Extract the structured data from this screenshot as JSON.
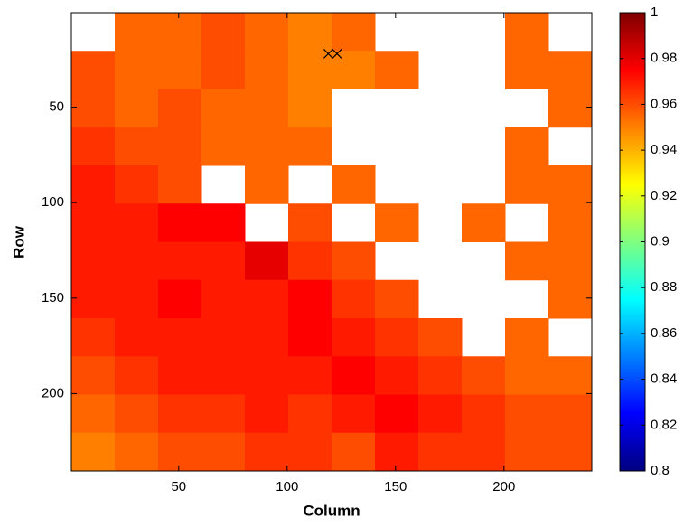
{
  "chart_data": {
    "type": "heatmap",
    "x_label": "Column",
    "y_label": "Row",
    "x": [
      10.5,
      30.5,
      50.5,
      70.5,
      90.5,
      110.5,
      130.5,
      150.5,
      170.5,
      190.5,
      210.5,
      230.5
    ],
    "y": [
      10.5,
      30.5,
      50.5,
      70.5,
      90.5,
      110.5,
      130.5,
      150.5,
      170.5,
      190.5,
      210.5,
      230.5
    ],
    "cell_size": 20,
    "z": [
      [
        null,
        0.955,
        0.955,
        0.96,
        0.955,
        0.95,
        0.955,
        null,
        null,
        null,
        0.955,
        null
      ],
      [
        0.96,
        0.955,
        0.955,
        0.96,
        0.955,
        0.95,
        0.95,
        0.955,
        null,
        null,
        0.955,
        0.955
      ],
      [
        0.96,
        0.955,
        0.96,
        0.955,
        0.955,
        0.95,
        null,
        null,
        null,
        null,
        null,
        0.955
      ],
      [
        0.965,
        0.96,
        0.96,
        0.955,
        0.955,
        0.955,
        null,
        null,
        null,
        null,
        0.955,
        null
      ],
      [
        0.97,
        0.965,
        0.96,
        null,
        0.955,
        null,
        0.955,
        null,
        null,
        null,
        0.955,
        0.955
      ],
      [
        0.97,
        0.97,
        0.975,
        0.975,
        null,
        0.96,
        null,
        0.955,
        null,
        0.955,
        null,
        0.955
      ],
      [
        0.97,
        0.97,
        0.97,
        0.97,
        0.98,
        0.965,
        0.96,
        null,
        null,
        null,
        0.955,
        0.955
      ],
      [
        0.97,
        0.97,
        0.975,
        0.97,
        0.97,
        0.975,
        0.965,
        0.96,
        null,
        null,
        null,
        0.955
      ],
      [
        0.965,
        0.97,
        0.97,
        0.97,
        0.97,
        0.975,
        0.97,
        0.965,
        0.96,
        null,
        0.955,
        null
      ],
      [
        0.96,
        0.965,
        0.97,
        0.97,
        0.97,
        0.97,
        0.975,
        0.97,
        0.965,
        0.96,
        0.955,
        0.955
      ],
      [
        0.955,
        0.96,
        0.965,
        0.965,
        0.97,
        0.965,
        0.97,
        0.975,
        0.97,
        0.965,
        0.96,
        0.96
      ],
      [
        0.95,
        0.955,
        0.96,
        0.96,
        0.965,
        0.965,
        0.96,
        0.97,
        0.965,
        0.965,
        0.96,
        0.96
      ]
    ],
    "markers": {
      "x": [
        119,
        123
      ],
      "y": [
        22,
        22
      ],
      "color": "#000000"
    },
    "xlim": [
      0.5,
      240.5
    ],
    "xticks": [
      50,
      100,
      150,
      200
    ],
    "ylim": [
      0.5,
      240.5
    ],
    "yticks": [
      50,
      100,
      150,
      200
    ],
    "y_reversed": true,
    "colormap": "jet",
    "clim": [
      0.8,
      1
    ],
    "cticks": [
      0.8,
      0.82,
      0.84,
      0.86,
      0.88,
      0.9,
      0.92,
      0.94,
      0.96,
      0.98,
      1
    ]
  }
}
